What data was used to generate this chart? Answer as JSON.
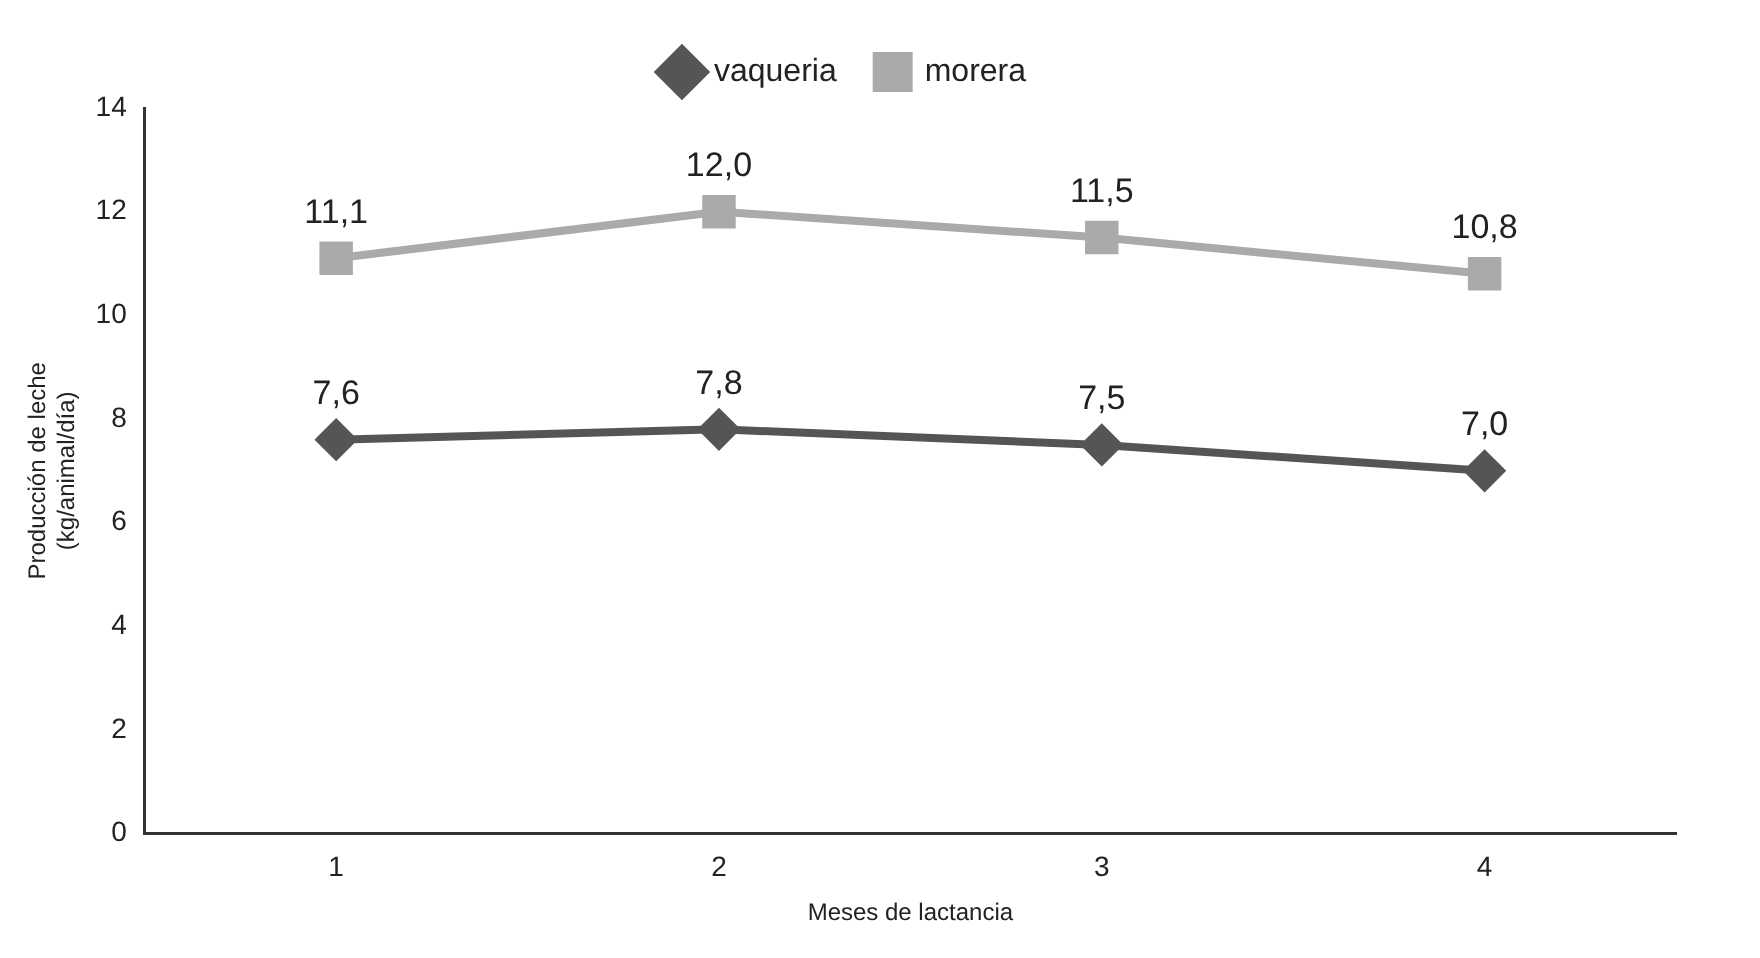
{
  "chart_data": {
    "type": "line",
    "xlabel": "Meses de lactancia",
    "ylabel": "Producción de leche\n(kg/animal/día)",
    "categories": [
      "1",
      "2",
      "3",
      "4"
    ],
    "ylim": [
      0,
      14
    ],
    "yticks": [
      0,
      2,
      4,
      6,
      8,
      10,
      12,
      14
    ],
    "grid": false,
    "legend": "top",
    "series": [
      {
        "name": "vaqueria",
        "color": "#555555",
        "marker": "diamond",
        "values": [
          7.6,
          7.8,
          7.5,
          7.0
        ],
        "value_labels": [
          "7,6",
          "7,8",
          "7,5",
          "7,0"
        ]
      },
      {
        "name": "morera",
        "color": "#aaaaaa",
        "marker": "square",
        "values": [
          11.1,
          12.0,
          11.5,
          10.8
        ],
        "value_labels": [
          "11,1",
          "12,0",
          "11,5",
          "10,8"
        ]
      }
    ]
  }
}
